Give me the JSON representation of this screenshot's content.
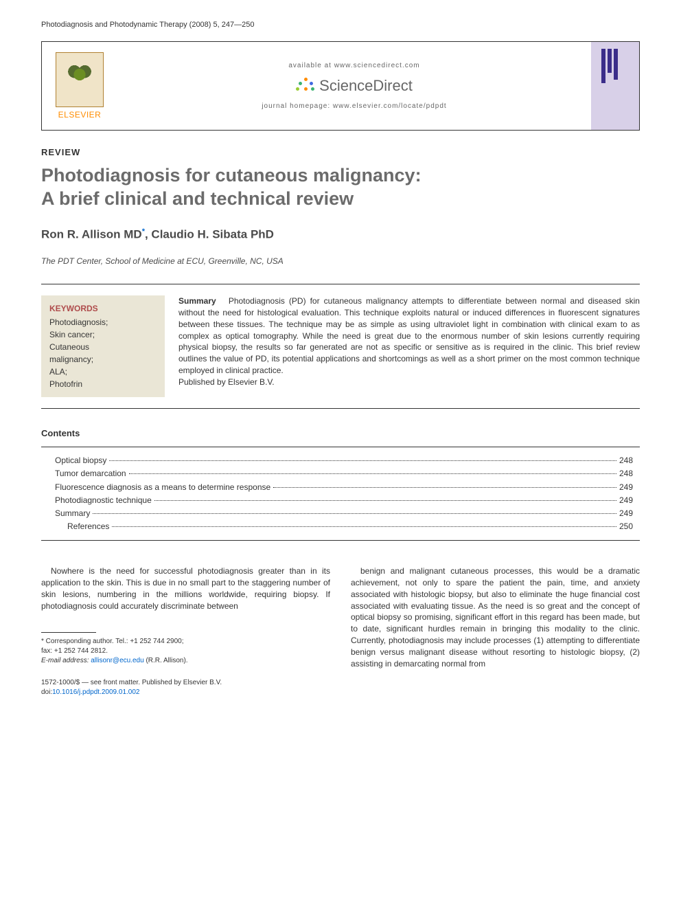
{
  "journal_header": "Photodiagnosis and Photodynamic Therapy (2008) 5, 247—250",
  "header": {
    "elsevier": "ELSEVIER",
    "available": "available at www.sciencedirect.com",
    "sd_name": "ScienceDirect",
    "homepage": "journal homepage: www.elsevier.com/locate/pdpdt",
    "spark_colors": [
      "#ff8c00",
      "#3cb371",
      "#4169e1",
      "#ff8c00",
      "#3cb371",
      "#9acd32"
    ],
    "pdpdt_bg": "#d8d0e8",
    "pdpdt_bar_color": "#3b2d8a",
    "pdpdt_bar_heights": [
      50,
      35,
      45
    ]
  },
  "article_type": "REVIEW",
  "title_line1": "Photodiagnosis for cutaneous malignancy:",
  "title_line2": "A brief clinical and technical review",
  "authors": "Ron R. Allison MD*, Claudio H. Sibata PhD",
  "affiliation": "The PDT Center, School of Medicine at ECU, Greenville, NC, USA",
  "keywords": {
    "head": "KEYWORDS",
    "items": "Photodiagnosis;\nSkin cancer;\nCutaneous\nmalignancy;\nALA;\nPhotofrin"
  },
  "summary": {
    "head": "Summary",
    "text": "Photodiagnosis (PD) for cutaneous malignancy attempts to differentiate between normal and diseased skin without the need for histological evaluation. This technique exploits natural or induced differences in fluorescent signatures between these tissues. The technique may be as simple as using ultraviolet light in combination with clinical exam to as complex as optical tomography. While the need is great due to the enormous number of skin lesions currently requiring physical biopsy, the results so far generated are not as specific or sensitive as is required in the clinic. This brief review outlines the value of PD, its potential applications and shortcomings as well as a short primer on the most common technique employed in clinical practice.",
    "publisher": "Published by Elsevier B.V."
  },
  "contents_head": "Contents",
  "toc": [
    {
      "label": "Optical biopsy",
      "page": "248",
      "indent": false
    },
    {
      "label": "Tumor demarcation",
      "page": "248",
      "indent": false
    },
    {
      "label": "Fluorescence diagnosis as a means to determine response",
      "page": "249",
      "indent": false
    },
    {
      "label": "Photodiagnostic technique",
      "page": "249",
      "indent": false
    },
    {
      "label": "Summary",
      "page": "249",
      "indent": false
    },
    {
      "label": "References",
      "page": "250",
      "indent": true
    }
  ],
  "body": {
    "col1": "Nowhere is the need for successful photodiagnosis greater than in its application to the skin. This is due in no small part to the staggering number of skin lesions, numbering in the millions worldwide, requiring biopsy. If photodiagnosis could accurately discriminate between",
    "col2": "benign and malignant cutaneous processes, this would be a dramatic achievement, not only to spare the patient the pain, time, and anxiety associated with histologic biopsy, but also to eliminate the huge financial cost associated with evaluating tissue. As the need is so great and the concept of optical biopsy so promising, significant effort in this regard has been made, but to date, significant hurdles remain in bringing this modality to the clinic. Currently, photodiagnosis may include processes (1) attempting to differentiate benign versus malignant disease without resorting to histologic biopsy, (2) assisting in demarcating normal from"
  },
  "footnotes": {
    "corresp_label": "* Corresponding author. Tel.: +1 252 744 2900;",
    "fax": "fax: +1 252 744 2812.",
    "email_label": "E-mail address:",
    "email": "allisonr@ecu.edu",
    "email_suffix": "(R.R. Allison)."
  },
  "doi": {
    "issn": "1572-1000/$ — see front matter. Published by Elsevier B.V.",
    "doi_prefix": "doi:",
    "doi_link": "10.1016/j.pdpdt.2009.01.002"
  },
  "colors": {
    "text": "#333333",
    "title": "#6b6b6b",
    "kw_head": "#af4c4c",
    "kw_bg": "#eae6d6",
    "link": "#0066cc",
    "elsevier": "#ff8c00"
  }
}
